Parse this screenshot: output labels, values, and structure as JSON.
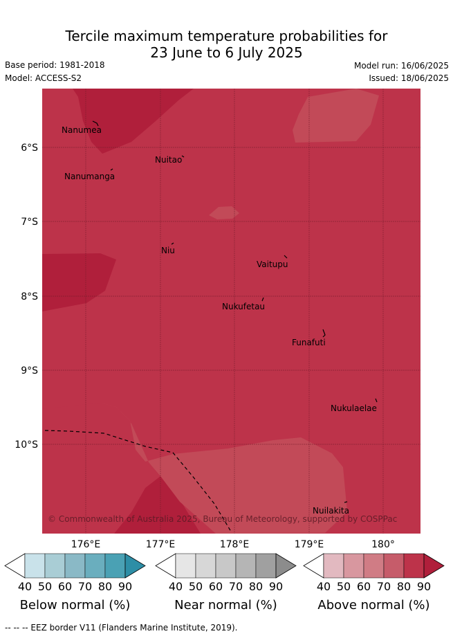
{
  "header": {
    "title_line1": "Tercile maximum temperature probabilities for",
    "title_line2": "23 June to 6 July 2025",
    "base_period": "Base period: 1981-2018",
    "model": "Model: ACCESS-S2",
    "model_run": "Model run: 16/06/2025",
    "issued": "Issued: 18/06/2025"
  },
  "map": {
    "lat_labels": [
      "6°S",
      "7°S",
      "8°S",
      "9°S",
      "10°S"
    ],
    "lon_labels": [
      "176°E",
      "177°E",
      "178°E",
      "179°E",
      "180°"
    ],
    "places": [
      "Nanumea",
      "Nuitao",
      "Nanumanga",
      "Niu",
      "Vaitupu",
      "Nukufetau",
      "Funafuti",
      "Nukulaelae",
      "Nuilakita"
    ],
    "copyright": "© Commonwealth of Australia 2025, Bureau of Meteorology, supported by COSPPac",
    "colors": {
      "base": "#bd334a",
      "dark": "#b01f3b",
      "light": "#c24a58"
    }
  },
  "colorbars": [
    {
      "label": "Below normal (%)",
      "ticks": [
        "40",
        "50",
        "60",
        "70",
        "80",
        "90"
      ],
      "colors": [
        "#ffffff",
        "#c9e2ea",
        "#a9cdd5",
        "#8ab9c6",
        "#6aaebe",
        "#4aa1b4",
        "#2d8ea6"
      ]
    },
    {
      "label": "Near normal (%)",
      "ticks": [
        "40",
        "50",
        "60",
        "70",
        "80",
        "90"
      ],
      "colors": [
        "#ffffff",
        "#e6e6e6",
        "#d7d7d7",
        "#c8c8c8",
        "#b5b5b5",
        "#a0a0a0",
        "#8c8c8c"
      ]
    },
    {
      "label": "Above normal (%)",
      "ticks": [
        "40",
        "50",
        "60",
        "70",
        "80",
        "90"
      ],
      "colors": [
        "#ffffff",
        "#e2b9c0",
        "#d8979f",
        "#d07c85",
        "#c65c6a",
        "#bd334a",
        "#b01f3b"
      ]
    }
  ],
  "footer": {
    "legend": "-- -- -- EEZ border V11 (Flanders Marine Institute, 2019)."
  }
}
